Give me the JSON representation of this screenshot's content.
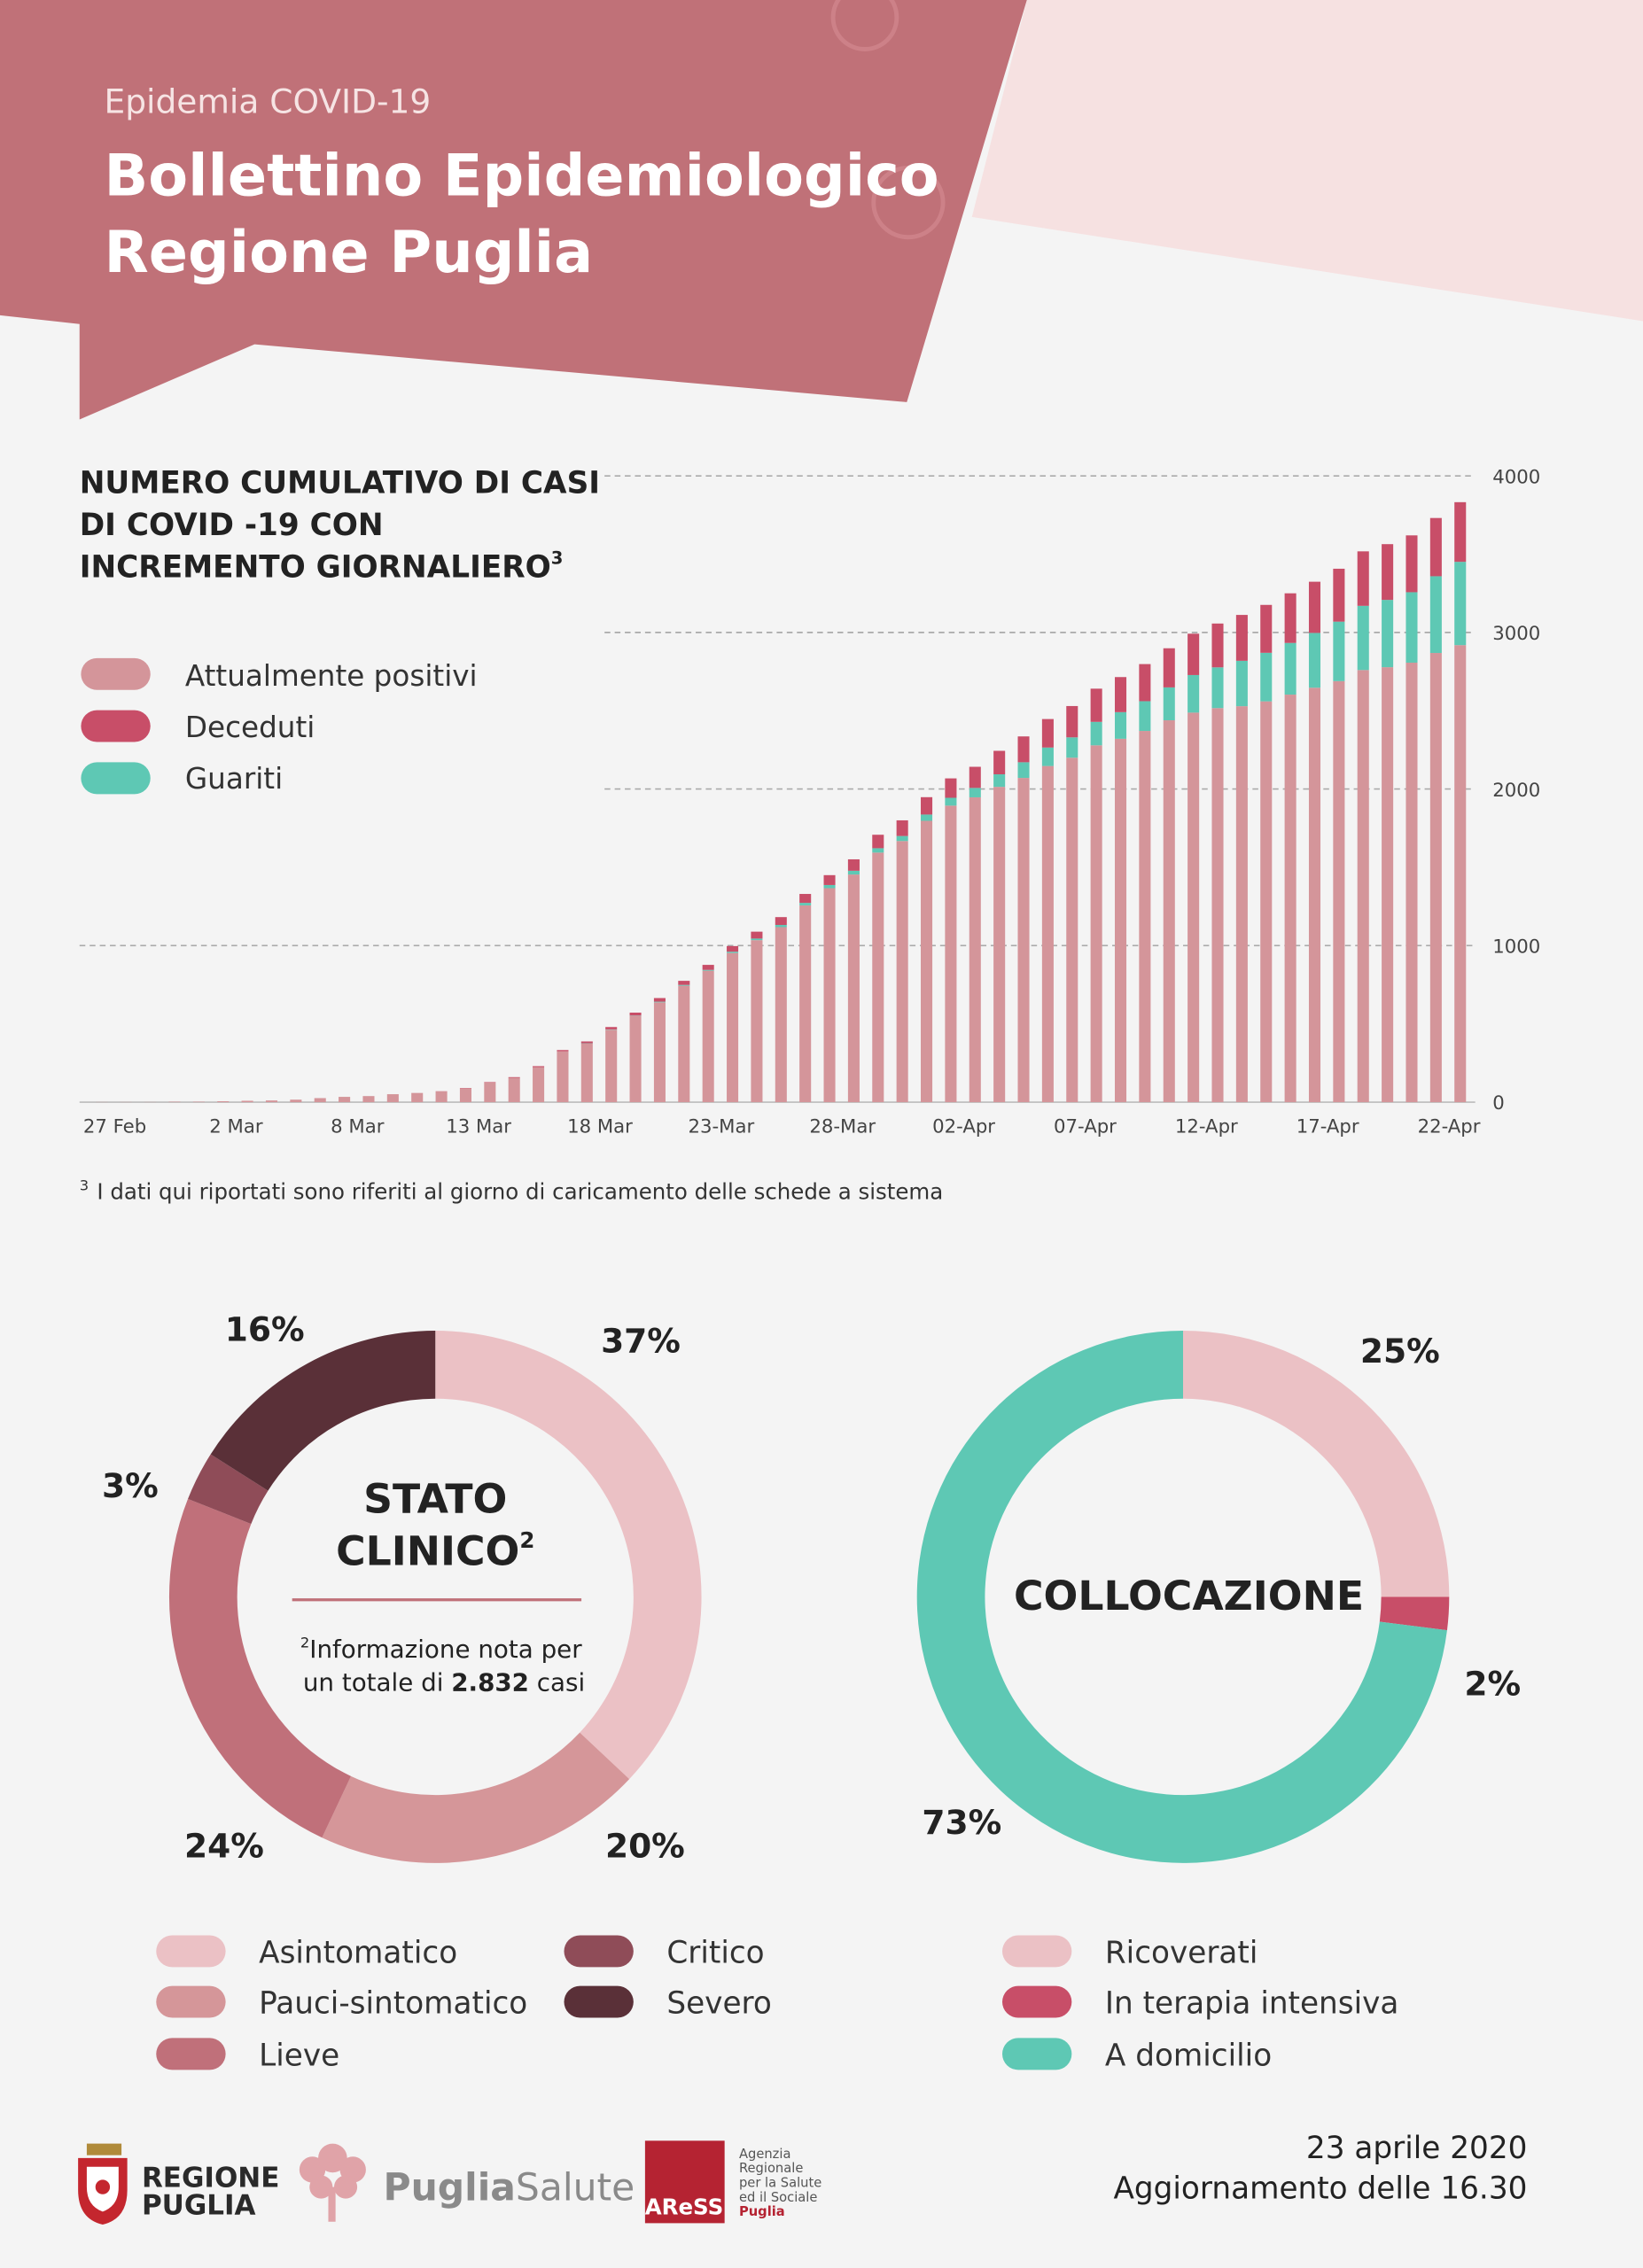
{
  "header": {
    "kicker": "Epidemia COVID-19",
    "title": [
      "Bollettino Epidemiologico",
      "Regione Puglia"
    ]
  },
  "chart_data": [
    {
      "type": "bar",
      "stacked": true,
      "title": [
        "NUMERO CUMULATIVO DI CASI",
        "DI COVID -19  CON",
        "INCREMENTO GIORNALIERO"
      ],
      "title_note": "3",
      "categories": [
        "27 Feb",
        null,
        null,
        null,
        null,
        "2 Mar",
        null,
        null,
        null,
        null,
        "8 Mar",
        null,
        null,
        null,
        null,
        "13 Mar",
        null,
        null,
        null,
        null,
        "18 Mar",
        null,
        null,
        null,
        null,
        "23-Mar",
        null,
        null,
        null,
        null,
        "28-Mar",
        null,
        null,
        null,
        null,
        "02-Apr",
        null,
        null,
        null,
        null,
        "07-Apr",
        null,
        null,
        null,
        null,
        "12-Apr",
        null,
        null,
        null,
        null,
        "17-Apr",
        null,
        null,
        null,
        null,
        "22-Apr",
        null
      ],
      "series": [
        {
          "name": "Attualmente positivi",
          "color": "#d4959a",
          "values": [
            1,
            1,
            1,
            3,
            3,
            6,
            9,
            11,
            16,
            26,
            34,
            39,
            51,
            59,
            69,
            89,
            125,
            156,
            224,
            325,
            374,
            463,
            551,
            638,
            744,
            840,
            953,
            1035,
            1118,
            1257,
            1367,
            1454,
            1594,
            1668,
            1797,
            1894,
            1947,
            2014,
            2071,
            2147,
            2200,
            2279,
            2321,
            2371,
            2439,
            2488,
            2517,
            2529,
            2560,
            2603,
            2647,
            2689,
            2760,
            2778,
            2807,
            2869,
            2919
          ]
        },
        {
          "name": "Deceduti",
          "color": "#c84e68",
          "values": [
            0,
            0,
            0,
            0,
            0,
            0,
            0,
            0,
            0,
            0,
            0,
            0,
            0,
            0,
            1,
            2,
            3,
            4,
            6,
            8,
            12,
            15,
            19,
            23,
            26,
            32,
            36,
            44,
            50,
            57,
            63,
            73,
            86,
            100,
            111,
            124,
            135,
            150,
            165,
            182,
            200,
            212,
            224,
            237,
            250,
            264,
            280,
            293,
            306,
            317,
            327,
            338,
            348,
            356,
            363,
            372,
            381
          ]
        },
        {
          "name": "Guariti",
          "color": "#5ec8b4",
          "values": [
            0,
            0,
            0,
            0,
            0,
            0,
            0,
            0,
            0,
            0,
            0,
            0,
            0,
            0,
            0,
            0,
            0,
            0,
            0,
            0,
            2,
            2,
            2,
            4,
            5,
            5,
            8,
            10,
            14,
            16,
            20,
            24,
            28,
            32,
            40,
            50,
            60,
            80,
            100,
            118,
            130,
            150,
            170,
            190,
            210,
            240,
            260,
            290,
            310,
            330,
            350,
            380,
            410,
            430,
            450,
            490,
            532
          ]
        }
      ],
      "stack_order": [
        0,
        2,
        1
      ],
      "ylim": [
        0,
        4000
      ],
      "yticks": [
        0,
        1000,
        2000,
        3000,
        4000
      ],
      "grid": true,
      "grid_style": "dashed",
      "y_axis_side": "right",
      "footnote": {
        "marker": "3",
        "text": "I dati qui riportati sono riferiti al giorno di caricamento delle schede a sistema"
      }
    },
    {
      "type": "donut",
      "title": [
        "STATO",
        "CLINICO"
      ],
      "title_note": "2",
      "note": {
        "marker": "2",
        "line1": "Informazione nota per",
        "line2": "un totale di",
        "value": "2.832",
        "unit": "casi"
      },
      "categories": [
        "Asintomatico",
        "Pauci-sintomatico",
        "Lieve",
        "Critico",
        "Severo"
      ],
      "values": [
        37,
        20,
        24,
        3,
        16
      ],
      "value_labels": [
        "37%",
        "20%",
        "24%",
        "3%",
        "16%"
      ],
      "colors": [
        "#ebc1c5",
        "#d59699",
        "#c0707a",
        "#8f4c58",
        "#5a3038"
      ]
    },
    {
      "type": "donut",
      "title": [
        "COLLOCAZIONE"
      ],
      "categories": [
        "Ricoverati",
        "In terapia intensiva",
        "A domicilio"
      ],
      "values": [
        25,
        2,
        73
      ],
      "value_labels": [
        "25%",
        "2%",
        "73%"
      ],
      "colors": [
        "#ebc1c5",
        "#c84e68",
        "#5ec8b4"
      ]
    }
  ],
  "footer": {
    "region": [
      "REGIONE",
      "PUGLIA"
    ],
    "brand": [
      "Puglia",
      "Salute"
    ],
    "agency": "AReSS",
    "agency_name": [
      "Agenzia",
      "Regionale",
      "per la Salute",
      "ed il Sociale",
      "Puglia"
    ],
    "date": "23 aprile 2020",
    "update": "Aggiornamento delle 16.30"
  }
}
